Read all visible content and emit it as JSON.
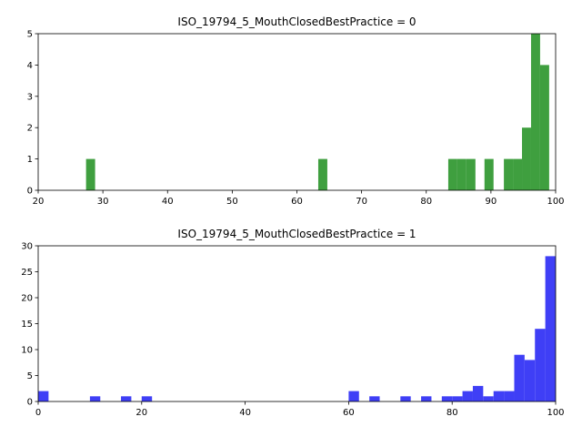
{
  "chart_data": [
    {
      "type": "bar",
      "title": "ISO_19794_5_MouthClosedBestPractice = 0",
      "color": "#3f9f3f",
      "xlim": [
        20,
        100
      ],
      "ylim": [
        0,
        5
      ],
      "xticks": [
        20,
        30,
        40,
        50,
        60,
        70,
        80,
        90,
        100
      ],
      "yticks": [
        0,
        1,
        2,
        3,
        4,
        5
      ],
      "bins": [
        {
          "x0": 27.4,
          "x1": 28.8,
          "count": 1
        },
        {
          "x0": 63.3,
          "x1": 64.7,
          "count": 1
        },
        {
          "x0": 83.4,
          "x1": 84.8,
          "count": 1
        },
        {
          "x0": 84.8,
          "x1": 86.2,
          "count": 1
        },
        {
          "x0": 86.2,
          "x1": 87.6,
          "count": 1
        },
        {
          "x0": 89.0,
          "x1": 90.4,
          "count": 1
        },
        {
          "x0": 92.0,
          "x1": 93.4,
          "count": 1
        },
        {
          "x0": 93.4,
          "x1": 94.8,
          "count": 1
        },
        {
          "x0": 94.8,
          "x1": 96.2,
          "count": 2
        },
        {
          "x0": 96.2,
          "x1": 97.6,
          "count": 5
        },
        {
          "x0": 97.6,
          "x1": 99.0,
          "count": 4
        }
      ]
    },
    {
      "type": "bar",
      "title": "ISO_19794_5_MouthClosedBestPractice = 1",
      "color": "#3f3ff6",
      "xlim": [
        0,
        100
      ],
      "ylim": [
        0,
        30
      ],
      "xticks": [
        0,
        20,
        40,
        60,
        80,
        100
      ],
      "yticks": [
        0,
        5,
        10,
        15,
        20,
        25,
        30
      ],
      "bins": [
        {
          "x0": 0,
          "x1": 2,
          "count": 2
        },
        {
          "x0": 10,
          "x1": 12,
          "count": 1
        },
        {
          "x0": 16,
          "x1": 18,
          "count": 1
        },
        {
          "x0": 20,
          "x1": 22,
          "count": 1
        },
        {
          "x0": 60,
          "x1": 62,
          "count": 2
        },
        {
          "x0": 64,
          "x1": 66,
          "count": 1
        },
        {
          "x0": 70,
          "x1": 72,
          "count": 1
        },
        {
          "x0": 74,
          "x1": 76,
          "count": 1
        },
        {
          "x0": 78,
          "x1": 80,
          "count": 1
        },
        {
          "x0": 80,
          "x1": 82,
          "count": 1
        },
        {
          "x0": 82,
          "x1": 84,
          "count": 2
        },
        {
          "x0": 84,
          "x1": 86,
          "count": 3
        },
        {
          "x0": 86,
          "x1": 88,
          "count": 1
        },
        {
          "x0": 88,
          "x1": 90,
          "count": 2
        },
        {
          "x0": 90,
          "x1": 92,
          "count": 2
        },
        {
          "x0": 92,
          "x1": 94,
          "count": 9
        },
        {
          "x0": 94,
          "x1": 96,
          "count": 8
        },
        {
          "x0": 96,
          "x1": 98,
          "count": 14
        },
        {
          "x0": 98,
          "x1": 100,
          "count": 28
        }
      ]
    }
  ]
}
